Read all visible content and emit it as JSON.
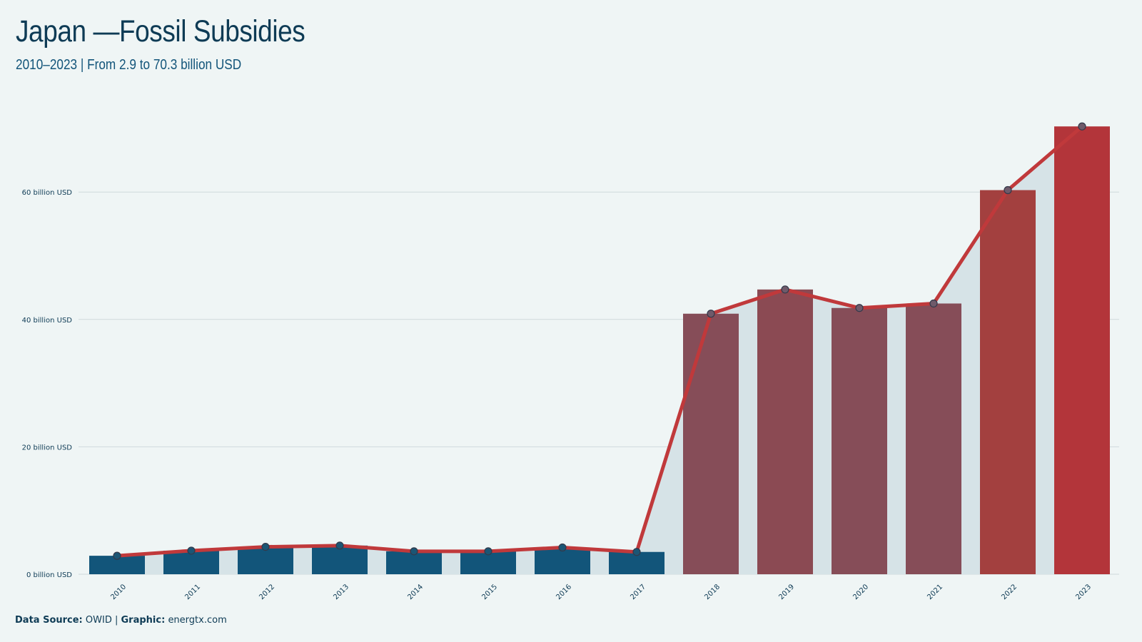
{
  "header": {
    "title": "Japan —Fossil Subsidies",
    "subtitle": "2010–2023 | From 2.9 to 70.3 billion USD"
  },
  "footer": {
    "source_label": "Data Source:",
    "source_value": "OWID",
    "separator": "|",
    "graphic_label": "Graphic:",
    "graphic_value": "energtx.com"
  },
  "colors": {
    "background": "#eff5f5",
    "bar_low": "#12557a",
    "bar_mid": "#864d58",
    "bar_high": "#b3353a",
    "line": "#c0393b",
    "area": "#d6e3e7",
    "grid": "#cfd9dc",
    "marker": "#6f5a6a"
  },
  "chart_data": {
    "type": "bar",
    "categories": [
      "2010",
      "2011",
      "2012",
      "2013",
      "2014",
      "2015",
      "2016",
      "2017",
      "2018",
      "2019",
      "2020",
      "2021",
      "2022",
      "2023"
    ],
    "values": [
      2.9,
      3.7,
      4.3,
      4.5,
      3.6,
      3.6,
      4.2,
      3.5,
      40.9,
      44.7,
      41.8,
      42.5,
      60.3,
      70.3
    ],
    "overlay": "line with markers and shaded area on same values",
    "yticks": [
      0,
      20,
      40,
      60
    ],
    "ytick_labels": [
      "0 billion USD",
      "20 billion USD",
      "40 billion USD",
      "60 billion USD"
    ],
    "ylim": [
      0,
      72
    ],
    "grid": true,
    "title": "Japan —Fossil Subsidies",
    "xlabel": "",
    "ylabel": ""
  }
}
